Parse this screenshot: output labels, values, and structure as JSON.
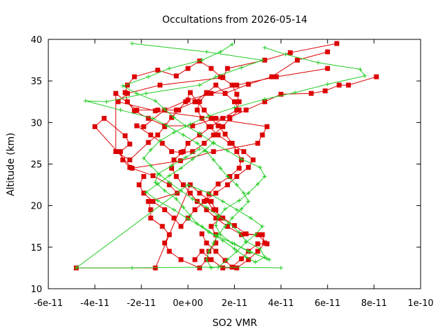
{
  "chart_data": {
    "type": "line",
    "title": "Occultations from 2026-05-14",
    "xlabel": "SO2 VMR",
    "ylabel": "Altitude (km)",
    "xlim": [
      -6e-11,
      1e-10
    ],
    "ylim": [
      10,
      40
    ],
    "x_tick_labels": [
      "-6e-11",
      "-4e-11",
      "-2e-11",
      "0e+00",
      "2e-11",
      "4e-11",
      "6e-11",
      "8e-11",
      "1e-10"
    ],
    "x_tick_values": [
      -6e-11,
      -4e-11,
      -2e-11,
      0,
      2e-11,
      4e-11,
      6e-11,
      8e-11,
      1e-10
    ],
    "y_tick_labels": [
      "10",
      "15",
      "20",
      "25",
      "30",
      "35",
      "40"
    ],
    "y_tick_values": [
      10,
      15,
      20,
      25,
      30,
      35,
      40
    ],
    "grid": false,
    "legend": "none",
    "colors": {
      "series_a": "#dd0000",
      "series_b": "#22cc22",
      "frame": "#000000"
    },
    "series": [
      {
        "marker": "square",
        "color": "#dd0000",
        "x": [
          6.4e-11,
          4.4e-11,
          3.3e-11,
          1.7e-11,
          1.5e-11,
          -1.2e-11,
          -2.6e-11,
          -3e-11,
          -1.4e-11,
          1e-11,
          3.4e-11,
          3.2e-11,
          3e-11,
          1.1e-11,
          -3.2e-12,
          -2.4e-11,
          -4e-11,
          -3.6e-11,
          -2.7e-11,
          -2.5e-11,
          -2.9e-11,
          -2.8e-11,
          -2.5e-11,
          -1.5e-11,
          -8e-12,
          -4.6e-12,
          -1.7e-11,
          -1.6e-11,
          -1.6e-11,
          -1.1e-11,
          -8e-12,
          -1e-11,
          -8e-12,
          -3e-12,
          5e-12,
          8e-12,
          9e-12,
          1.2e-11,
          1.2e-11,
          1e-11,
          1.4e-11,
          1.2e-11,
          1e-11,
          5e-12,
          1e-12,
          -1.4e-11,
          -4.8e-11
        ],
        "y": [
          39.5,
          38.4,
          37.5,
          36.5,
          35.4,
          34.5,
          33.5,
          32.5,
          31.4,
          30.5,
          29.5,
          28.5,
          27.5,
          26.5,
          25.4,
          24.5,
          29.5,
          30.5,
          28.4,
          27.4,
          26.5,
          25.5,
          24.6,
          23.6,
          22.5,
          21.5,
          20.5,
          19.5,
          18.5,
          17.5,
          16.5,
          15.5,
          14.5,
          13.5,
          12.5,
          13.5,
          14.5,
          15.5,
          16.5,
          17.5,
          18.5,
          19.5,
          20.5,
          21.5,
          22.5,
          12.5,
          12.5
        ]
      },
      {
        "marker": "square",
        "color": "#dd0000",
        "x": [
          8.1e-11,
          6.9e-11,
          6.5e-11,
          5.9e-11,
          5.3e-11,
          4e-11,
          3.3e-11,
          2.5e-11,
          1.8e-11,
          1.2e-11,
          2e-12,
          -1e-11,
          -1.7e-11,
          -2.3e-11,
          -2.6e-11,
          -2.7e-11,
          -2.6e-11,
          -2.3e-11,
          -1.3e-11,
          -5e-12,
          0.0,
          5e-12,
          1e-11,
          1.4e-11,
          1.9e-11,
          2.1e-11,
          2.2e-11,
          2.1e-11,
          1.5e-11,
          1e-11,
          5e-12,
          0.0,
          -2e-12,
          -6e-12,
          -7e-12,
          -5e-12,
          -2e-12,
          1e-12,
          4e-12,
          8e-12,
          1.2e-11,
          1.7e-11,
          2.3e-11,
          3.2e-11,
          3.3e-11,
          3e-11,
          2.6e-11,
          2.1e-11,
          1.5e-11,
          1e-11,
          6e-12,
          3e-12
        ],
        "y": [
          35.5,
          34.5,
          34.5,
          33.8,
          33.5,
          33.4,
          32.5,
          31.5,
          30.6,
          30.5,
          29.6,
          29.6,
          30.5,
          31.4,
          32.5,
          33.6,
          34.5,
          35.5,
          36.3,
          35.6,
          36.5,
          37.4,
          36.5,
          35.5,
          34.5,
          33.4,
          32.5,
          31.5,
          30.5,
          29.5,
          28.5,
          27.5,
          26.5,
          25.5,
          24.5,
          23.5,
          22.5,
          21.5,
          20.5,
          19.5,
          18.5,
          17.5,
          16.5,
          16.5,
          15.5,
          14.5,
          13.5,
          12.5,
          12.5,
          13.5,
          14.5,
          13.5
        ]
      },
      {
        "marker": "square",
        "color": "#dd0000",
        "x": [
          6e-11,
          4.7e-11,
          3.6e-11,
          2.6e-11,
          1.6e-11,
          8e-12,
          3e-12,
          -5e-12,
          -1.3e-11,
          -2.2e-11,
          -3.1e-11,
          -3.1e-11,
          -2.5e-11,
          -1.7e-11,
          -1.3e-11,
          -1e-11,
          -7e-12,
          -4e-12,
          -1e-12,
          1e-12,
          4e-12,
          7e-12,
          1e-11,
          1.3e-11,
          1.6e-11,
          1.9e-11,
          2.1e-11,
          2.3e-11,
          2.2e-11,
          1.8e-11,
          1.3e-11,
          9e-12,
          8e-12,
          1.1e-11,
          1.5e-11,
          2e-11,
          2.5e-11,
          3e-11,
          3.4e-11,
          3e-11,
          2.6e-11,
          2.3e-11,
          1.9e-11,
          1.6e-11,
          1.2e-11,
          8e-12,
          6e-12
        ],
        "y": [
          38.5,
          37.5,
          35.5,
          34.6,
          33.5,
          33.6,
          32.5,
          31.5,
          31.5,
          31.5,
          33.5,
          26.5,
          25.5,
          27.6,
          28.5,
          29.5,
          30.6,
          31.5,
          32.5,
          33.6,
          32.5,
          31.5,
          30.5,
          29.6,
          28.6,
          27.5,
          26.5,
          25.5,
          24.5,
          23.5,
          22.6,
          21.4,
          20.6,
          19.5,
          18.5,
          17.6,
          16.6,
          16.5,
          15.4,
          15.4,
          14.5,
          13.6,
          12.6,
          13.4,
          14.5,
          15.5,
          16.6
        ]
      },
      {
        "marker": "square",
        "color": "#dd0000",
        "x": [
          6e-11,
          3.8e-11,
          2.1e-11,
          1e-11,
          0.0,
          -1e-11,
          -1.9e-11,
          -2.2e-11,
          -1.6e-11,
          -1.1e-11,
          -7e-12,
          -3e-12,
          2e-12,
          7e-12,
          1.1e-11,
          1.5e-11,
          1.8e-11,
          2.2e-11,
          2e-11,
          1.6e-11,
          1.2e-11,
          8e-12,
          5e-12,
          4e-12,
          6e-12,
          9e-12,
          1.3e-11,
          1.8e-11,
          2.4e-11,
          2.8e-11,
          2.6e-11,
          2.1e-11,
          1.7e-11,
          1.2e-11,
          7e-12,
          3e-12,
          0.0,
          -3e-12,
          -6e-12,
          -1e-11,
          -1.5e-11,
          -1.9e-11,
          -2.1e-11,
          -1.9e-11
        ],
        "y": [
          36.5,
          35.5,
          34.5,
          33.5,
          32.7,
          31.5,
          29.5,
          29.6,
          28.5,
          27.5,
          26.5,
          26.4,
          26.5,
          27.5,
          28.5,
          29.5,
          30.5,
          31.5,
          32.5,
          33.5,
          34.5,
          33.5,
          32.5,
          31.5,
          30.5,
          29.5,
          28.5,
          27.5,
          26.5,
          25.5,
          24.6,
          23.5,
          22.5,
          21.5,
          20.5,
          19.5,
          18.5,
          17.5,
          18.5,
          19.5,
          20.5,
          21.5,
          22.5,
          23.5
        ]
      },
      {
        "marker": "plus",
        "color": "#22cc22",
        "x": [
          -2.4e-11,
          8e-12,
          3.2e-11,
          2.3e-11,
          1.2e-11,
          5e-12,
          -1.8e-11,
          -3.5e-11,
          -4.4e-11,
          -2.9e-11,
          -1.5e-11,
          -9e-12,
          -2e-12,
          4e-12,
          8e-12,
          1.1e-11,
          1.4e-11,
          1.7e-11,
          2.1e-11,
          2.4e-11,
          2.6e-11,
          2.3e-11,
          1.9e-11,
          1.6e-11,
          1.3e-11,
          1.1e-11,
          9e-12,
          8e-12,
          1e-11,
          1.3e-11,
          1.7e-11,
          2.1e-11,
          2.5e-11,
          2.9e-11,
          3.2e-11,
          2.7e-11,
          2.1e-11,
          1.5e-11,
          9e-12,
          0.0,
          -4.8e-11,
          -2.4e-11,
          1.3e-11,
          4e-11
        ],
        "y": [
          39.5,
          38.5,
          37.5,
          36.6,
          35.5,
          34.5,
          33.5,
          32.5,
          32.6,
          31.5,
          30.5,
          29.6,
          28.5,
          27.5,
          26.5,
          25.5,
          24.5,
          23.5,
          22.5,
          21.5,
          20.5,
          19.6,
          18.5,
          17.5,
          16.5,
          15.5,
          14.5,
          13.5,
          12.5,
          12.6,
          13.5,
          14.5,
          15.6,
          16.5,
          17.5,
          18.5,
          19.5,
          20.5,
          21.5,
          22.5,
          12.5,
          12.5,
          12.6,
          12.5
        ]
      },
      {
        "marker": "plus",
        "color": "#22cc22",
        "x": [
          1.9e-11,
          1.4e-11,
          6e-12,
          -8e-12,
          -1.7e-11,
          -2.8e-11,
          -2.2e-11,
          -1.4e-11,
          -1e-11,
          -6e-12,
          -1e-12,
          5e-12,
          1.1e-11,
          1.7e-11,
          2.3e-11,
          3.1e-11,
          3.3e-11,
          3e-11,
          2.6e-11,
          2.2e-11,
          1.6e-11,
          1.3e-11,
          1.2e-11,
          1.4e-11,
          1.9e-11,
          2.6e-11,
          3.4e-11,
          3.5e-11,
          2.7e-11,
          2e-11,
          1.2e-11,
          6e-12,
          0.0,
          -6e-12,
          -1.3e-11,
          -1.8e-11,
          -1.3e-11,
          -8e-12,
          -3e-12,
          2e-12,
          7e-12,
          1.1e-11
        ],
        "y": [
          39.4,
          38.5,
          37.5,
          36.5,
          35.5,
          34.4,
          33.5,
          32.6,
          31.6,
          30.6,
          29.6,
          28.7,
          27.5,
          26.6,
          25.6,
          24.6,
          23.5,
          22.6,
          21.5,
          20.6,
          19.6,
          18.6,
          17.6,
          16.5,
          15.5,
          14.5,
          13.6,
          13.5,
          14.4,
          15.4,
          16.4,
          17.5,
          18.4,
          19.5,
          20.6,
          21.6,
          22.6,
          23.6,
          24.5,
          25.6,
          26.6,
          27.6
        ]
      },
      {
        "marker": "plus",
        "color": "#22cc22",
        "x": [
          3.3e-11,
          4.2e-11,
          5.6e-11,
          7.4e-11,
          7.6e-11,
          6e-11,
          4.6e-11,
          3.3e-11,
          2e-11,
          9e-12,
          1e-12,
          -6e-12,
          -1.2e-11,
          -1.6e-11,
          -1.9e-11,
          -1.6e-11,
          -1.2e-11,
          -8e-12,
          -3e-12,
          2e-12,
          8e-12,
          1.3e-11,
          1.8e-11,
          2.2e-11,
          2.5e-11,
          3.1e-11,
          3.3e-11,
          2.9e-11,
          2.5e-11,
          2e-11,
          1.5e-11,
          9e-12,
          4e-12,
          1e-12,
          -2e-12,
          -5e-12,
          -1e-11,
          -1.4e-11,
          -1.3e-11,
          -7e-12,
          -1e-12,
          5e-12
        ],
        "y": [
          39.0,
          38.2,
          37.2,
          36.4,
          35.6,
          34.6,
          33.6,
          32.8,
          31.8,
          30.8,
          29.8,
          28.8,
          27.8,
          26.7,
          25.7,
          24.8,
          23.7,
          22.8,
          21.8,
          20.8,
          19.8,
          18.8,
          17.8,
          16.8,
          15.7,
          14.8,
          13.8,
          13.2,
          13.8,
          14.8,
          15.8,
          16.8,
          17.8,
          18.8,
          19.8,
          20.8,
          21.8,
          22.8,
          23.8,
          24.8,
          25.8,
          26.8
        ]
      }
    ]
  }
}
